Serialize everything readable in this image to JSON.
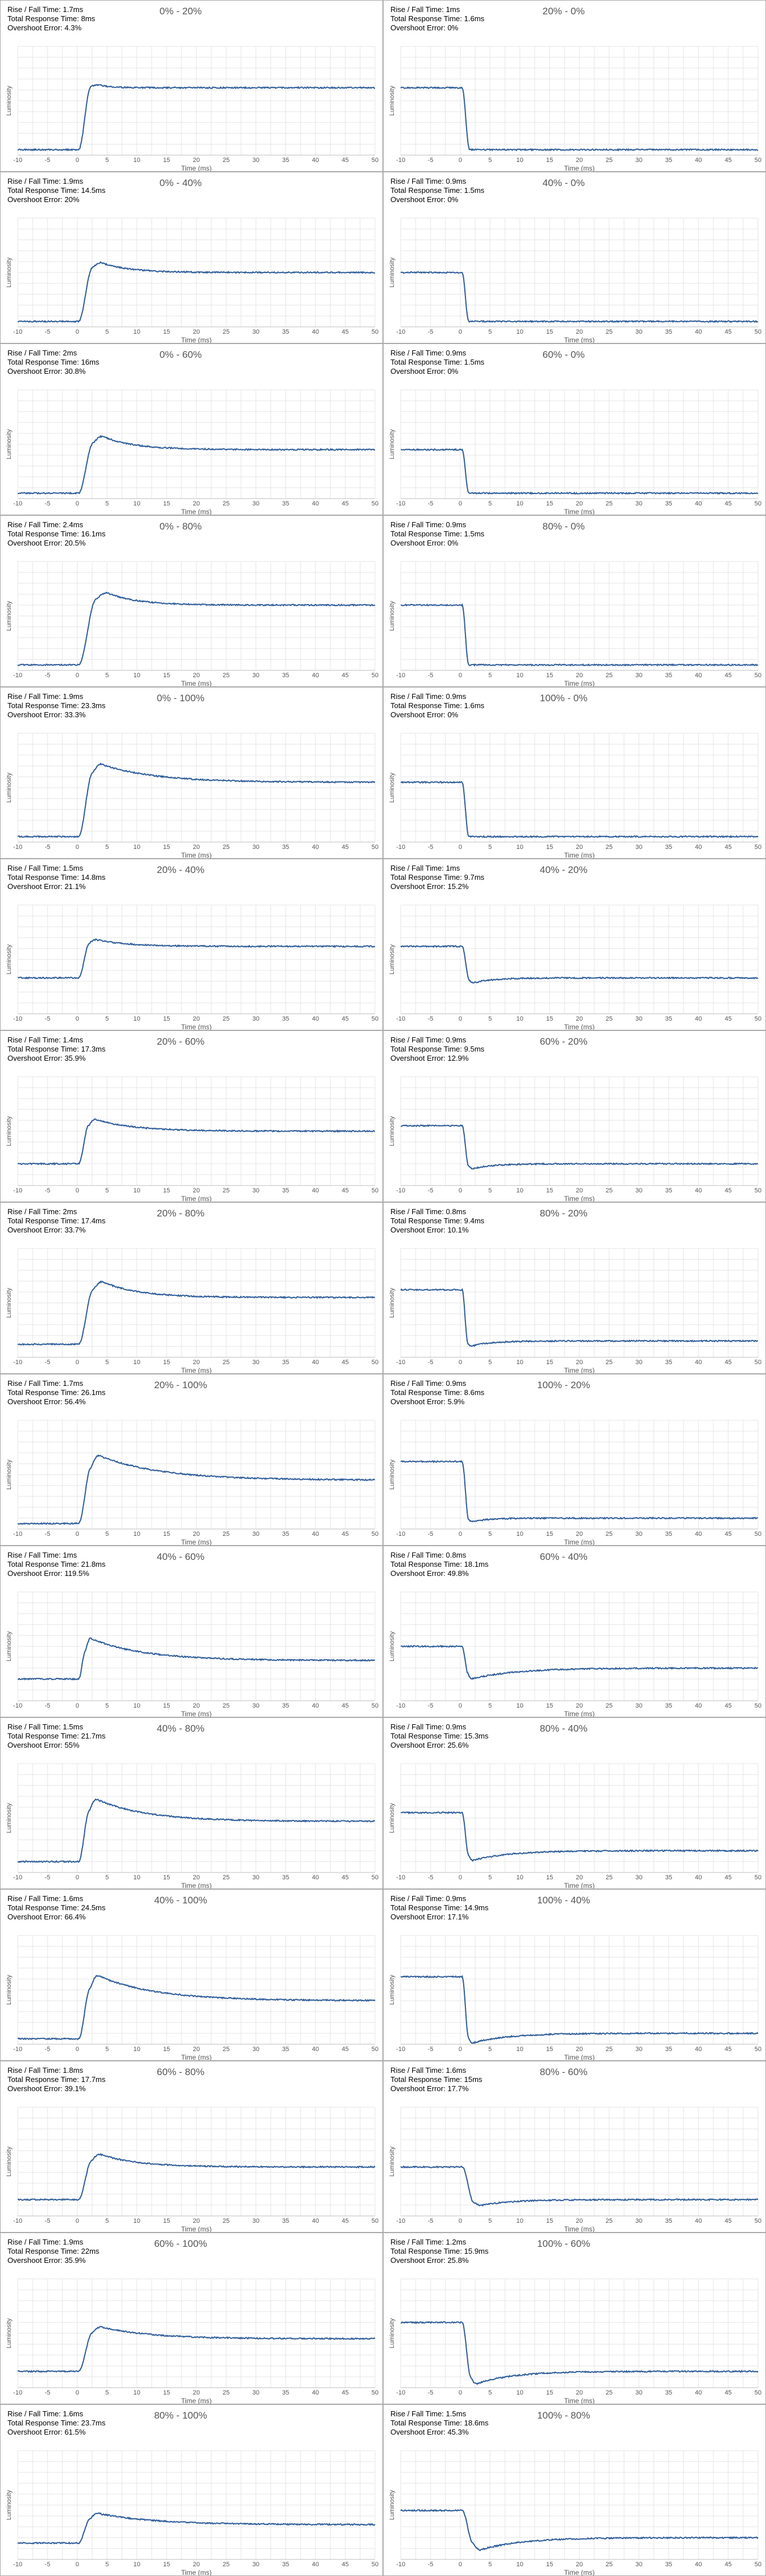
{
  "labels": {
    "rise_fall_prefix": "Rise / Fall Time: ",
    "total_prefix": "Total Response Time: ",
    "overshoot_prefix": "Overshoot Error: "
  },
  "chart_data": [
    {
      "type": "line",
      "title": "0% - 20%",
      "xlabel": "Time (ms)",
      "ylabel": "Luminosity",
      "xlim": [
        -10,
        50
      ],
      "xticks": [
        -10,
        -5,
        0,
        5,
        10,
        15,
        20,
        25,
        30,
        35,
        40,
        45,
        50
      ],
      "rise_fall": "1.7ms",
      "total_response": "8ms",
      "overshoot_error": "4.3%",
      "from_level": 0.05,
      "to_level": 0.62,
      "start_ms": 0.2,
      "transition_ms": 1.7,
      "settle_ms": 8,
      "overshoot": 0.043
    },
    {
      "type": "line",
      "title": "20% - 0%",
      "xlabel": "Time (ms)",
      "ylabel": "Luminosity",
      "xlim": [
        -10,
        50
      ],
      "xticks": [
        -10,
        -5,
        0,
        5,
        10,
        15,
        20,
        25,
        30,
        35,
        40,
        45,
        50
      ],
      "rise_fall": "1ms",
      "total_response": "1.6ms",
      "overshoot_error": "0%",
      "from_level": 0.62,
      "to_level": 0.05,
      "start_ms": 0.3,
      "transition_ms": 1,
      "settle_ms": 1.6,
      "overshoot": 0
    },
    {
      "type": "line",
      "title": "0% - 40%",
      "xlabel": "Time (ms)",
      "ylabel": "Luminosity",
      "xlim": [
        -10,
        50
      ],
      "xticks": [
        -10,
        -5,
        0,
        5,
        10,
        15,
        20,
        25,
        30,
        35,
        40,
        45,
        50
      ],
      "rise_fall": "1.9ms",
      "total_response": "14.5ms",
      "overshoot_error": "20%",
      "from_level": 0.05,
      "to_level": 0.5,
      "start_ms": 0.2,
      "transition_ms": 1.9,
      "settle_ms": 14.5,
      "overshoot": 0.2
    },
    {
      "type": "line",
      "title": "40% - 0%",
      "xlabel": "Time (ms)",
      "ylabel": "Luminosity",
      "xlim": [
        -10,
        50
      ],
      "xticks": [
        -10,
        -5,
        0,
        5,
        10,
        15,
        20,
        25,
        30,
        35,
        40,
        45,
        50
      ],
      "rise_fall": "0.9ms",
      "total_response": "1.5ms",
      "overshoot_error": "0%",
      "from_level": 0.5,
      "to_level": 0.05,
      "start_ms": 0.3,
      "transition_ms": 0.9,
      "settle_ms": 1.5,
      "overshoot": 0
    },
    {
      "type": "line",
      "title": "0% - 60%",
      "xlabel": "Time (ms)",
      "ylabel": "Luminosity",
      "xlim": [
        -10,
        50
      ],
      "xticks": [
        -10,
        -5,
        0,
        5,
        10,
        15,
        20,
        25,
        30,
        35,
        40,
        45,
        50
      ],
      "rise_fall": "2ms",
      "total_response": "16ms",
      "overshoot_error": "30.8%",
      "from_level": 0.05,
      "to_level": 0.45,
      "start_ms": 0.2,
      "transition_ms": 2,
      "settle_ms": 16,
      "overshoot": 0.308
    },
    {
      "type": "line",
      "title": "60% - 0%",
      "xlabel": "Time (ms)",
      "ylabel": "Luminosity",
      "xlim": [
        -10,
        50
      ],
      "xticks": [
        -10,
        -5,
        0,
        5,
        10,
        15,
        20,
        25,
        30,
        35,
        40,
        45,
        50
      ],
      "rise_fall": "0.9ms",
      "total_response": "1.5ms",
      "overshoot_error": "0%",
      "from_level": 0.45,
      "to_level": 0.05,
      "start_ms": 0.3,
      "transition_ms": 0.9,
      "settle_ms": 1.5,
      "overshoot": 0
    },
    {
      "type": "line",
      "title": "0% - 80%",
      "xlabel": "Time (ms)",
      "ylabel": "Luminosity",
      "xlim": [
        -10,
        50
      ],
      "xticks": [
        -10,
        -5,
        0,
        5,
        10,
        15,
        20,
        25,
        30,
        35,
        40,
        45,
        50
      ],
      "rise_fall": "2.4ms",
      "total_response": "16.1ms",
      "overshoot_error": "20.5%",
      "from_level": 0.05,
      "to_level": 0.6,
      "start_ms": 0.2,
      "transition_ms": 2.4,
      "settle_ms": 16.1,
      "overshoot": 0.205
    },
    {
      "type": "line",
      "title": "80% - 0%",
      "xlabel": "Time (ms)",
      "ylabel": "Luminosity",
      "xlim": [
        -10,
        50
      ],
      "xticks": [
        -10,
        -5,
        0,
        5,
        10,
        15,
        20,
        25,
        30,
        35,
        40,
        45,
        50
      ],
      "rise_fall": "0.9ms",
      "total_response": "1.5ms",
      "overshoot_error": "0%",
      "from_level": 0.6,
      "to_level": 0.05,
      "start_ms": 0.3,
      "transition_ms": 0.9,
      "settle_ms": 1.5,
      "overshoot": 0
    },
    {
      "type": "line",
      "title": "0% - 100%",
      "xlabel": "Time (ms)",
      "ylabel": "Luminosity",
      "xlim": [
        -10,
        50
      ],
      "xticks": [
        -10,
        -5,
        0,
        5,
        10,
        15,
        20,
        25,
        30,
        35,
        40,
        45,
        50
      ],
      "rise_fall": "1.9ms",
      "total_response": "23.3ms",
      "overshoot_error": "33.3%",
      "from_level": 0.05,
      "to_level": 0.55,
      "start_ms": 0.2,
      "transition_ms": 1.9,
      "settle_ms": 23.3,
      "overshoot": 0.333
    },
    {
      "type": "line",
      "title": "100% - 0%",
      "xlabel": "Time (ms)",
      "ylabel": "Luminosity",
      "xlim": [
        -10,
        50
      ],
      "xticks": [
        -10,
        -5,
        0,
        5,
        10,
        15,
        20,
        25,
        30,
        35,
        40,
        45,
        50
      ],
      "rise_fall": "0.9ms",
      "total_response": "1.6ms",
      "overshoot_error": "0%",
      "from_level": 0.55,
      "to_level": 0.05,
      "start_ms": 0.3,
      "transition_ms": 0.9,
      "settle_ms": 1.6,
      "overshoot": 0
    },
    {
      "type": "line",
      "title": "20% - 40%",
      "xlabel": "Time (ms)",
      "ylabel": "Luminosity",
      "xlim": [
        -10,
        50
      ],
      "xticks": [
        -10,
        -5,
        0,
        5,
        10,
        15,
        20,
        25,
        30,
        35,
        40,
        45,
        50
      ],
      "rise_fall": "1.5ms",
      "total_response": "14.8ms",
      "overshoot_error": "21.1%",
      "from_level": 0.33,
      "to_level": 0.62,
      "start_ms": 0.2,
      "transition_ms": 1.5,
      "settle_ms": 14.8,
      "overshoot": 0.211
    },
    {
      "type": "line",
      "title": "40% - 20%",
      "xlabel": "Time (ms)",
      "ylabel": "Luminosity",
      "xlim": [
        -10,
        50
      ],
      "xticks": [
        -10,
        -5,
        0,
        5,
        10,
        15,
        20,
        25,
        30,
        35,
        40,
        45,
        50
      ],
      "rise_fall": "1ms",
      "total_response": "9.7ms",
      "overshoot_error": "15.2%",
      "from_level": 0.62,
      "to_level": 0.33,
      "start_ms": 0.3,
      "transition_ms": 1,
      "settle_ms": 9.7,
      "overshoot": 0.152
    },
    {
      "type": "line",
      "title": "20% - 60%",
      "xlabel": "Time (ms)",
      "ylabel": "Luminosity",
      "xlim": [
        -10,
        50
      ],
      "xticks": [
        -10,
        -5,
        0,
        5,
        10,
        15,
        20,
        25,
        30,
        35,
        40,
        45,
        50
      ],
      "rise_fall": "1.4ms",
      "total_response": "17.3ms",
      "overshoot_error": "35.9%",
      "from_level": 0.2,
      "to_level": 0.5,
      "start_ms": 0.2,
      "transition_ms": 1.4,
      "settle_ms": 17.3,
      "overshoot": 0.359
    },
    {
      "type": "line",
      "title": "60% - 20%",
      "xlabel": "Time (ms)",
      "ylabel": "Luminosity",
      "xlim": [
        -10,
        50
      ],
      "xticks": [
        -10,
        -5,
        0,
        5,
        10,
        15,
        20,
        25,
        30,
        35,
        40,
        45,
        50
      ],
      "rise_fall": "0.9ms",
      "total_response": "9.5ms",
      "overshoot_error": "12.9%",
      "from_level": 0.55,
      "to_level": 0.2,
      "start_ms": 0.3,
      "transition_ms": 0.9,
      "settle_ms": 9.5,
      "overshoot": 0.129
    },
    {
      "type": "line",
      "title": "20% - 80%",
      "xlabel": "Time (ms)",
      "ylabel": "Luminosity",
      "xlim": [
        -10,
        50
      ],
      "xticks": [
        -10,
        -5,
        0,
        5,
        10,
        15,
        20,
        25,
        30,
        35,
        40,
        45,
        50
      ],
      "rise_fall": "2ms",
      "total_response": "17.4ms",
      "overshoot_error": "33.7%",
      "from_level": 0.12,
      "to_level": 0.55,
      "start_ms": 0.2,
      "transition_ms": 2,
      "settle_ms": 17.4,
      "overshoot": 0.337
    },
    {
      "type": "line",
      "title": "80% - 20%",
      "xlabel": "Time (ms)",
      "ylabel": "Luminosity",
      "xlim": [
        -10,
        50
      ],
      "xticks": [
        -10,
        -5,
        0,
        5,
        10,
        15,
        20,
        25,
        30,
        35,
        40,
        45,
        50
      ],
      "rise_fall": "0.8ms",
      "total_response": "9.4ms",
      "overshoot_error": "10.1%",
      "from_level": 0.62,
      "to_level": 0.15,
      "start_ms": 0.3,
      "transition_ms": 0.8,
      "settle_ms": 9.4,
      "overshoot": 0.101
    },
    {
      "type": "line",
      "title": "20% - 100%",
      "xlabel": "Time (ms)",
      "ylabel": "Luminosity",
      "xlim": [
        -10,
        50
      ],
      "xticks": [
        -10,
        -5,
        0,
        5,
        10,
        15,
        20,
        25,
        30,
        35,
        40,
        45,
        50
      ],
      "rise_fall": "1.7ms",
      "total_response": "26.1ms",
      "overshoot_error": "56.4%",
      "from_level": 0.05,
      "to_level": 0.45,
      "start_ms": 0.2,
      "transition_ms": 1.7,
      "settle_ms": 26.1,
      "overshoot": 0.564
    },
    {
      "type": "line",
      "title": "100% - 20%",
      "xlabel": "Time (ms)",
      "ylabel": "Luminosity",
      "xlim": [
        -10,
        50
      ],
      "xticks": [
        -10,
        -5,
        0,
        5,
        10,
        15,
        20,
        25,
        30,
        35,
        40,
        45,
        50
      ],
      "rise_fall": "0.9ms",
      "total_response": "8.6ms",
      "overshoot_error": "5.9%",
      "from_level": 0.62,
      "to_level": 0.1,
      "start_ms": 0.3,
      "transition_ms": 0.9,
      "settle_ms": 8.6,
      "overshoot": 0.059
    },
    {
      "type": "line",
      "title": "40% - 60%",
      "xlabel": "Time (ms)",
      "ylabel": "Luminosity",
      "xlim": [
        -10,
        50
      ],
      "xticks": [
        -10,
        -5,
        0,
        5,
        10,
        15,
        20,
        25,
        30,
        35,
        40,
        45,
        50
      ],
      "rise_fall": "1ms",
      "total_response": "21.8ms",
      "overshoot_error": "119.5%",
      "from_level": 0.2,
      "to_level": 0.37,
      "start_ms": 0.2,
      "transition_ms": 1,
      "settle_ms": 21.8,
      "overshoot": 1.195
    },
    {
      "type": "line",
      "title": "60% - 40%",
      "xlabel": "Time (ms)",
      "ylabel": "Luminosity",
      "xlim": [
        -10,
        50
      ],
      "xticks": [
        -10,
        -5,
        0,
        5,
        10,
        15,
        20,
        25,
        30,
        35,
        40,
        45,
        50
      ],
      "rise_fall": "0.8ms",
      "total_response": "18.1ms",
      "overshoot_error": "49.8%",
      "from_level": 0.5,
      "to_level": 0.3,
      "start_ms": 0.3,
      "transition_ms": 0.8,
      "settle_ms": 18.1,
      "overshoot": 0.498
    },
    {
      "type": "line",
      "title": "40% - 80%",
      "xlabel": "Time (ms)",
      "ylabel": "Luminosity",
      "xlim": [
        -10,
        50
      ],
      "xticks": [
        -10,
        -5,
        0,
        5,
        10,
        15,
        20,
        25,
        30,
        35,
        40,
        45,
        50
      ],
      "rise_fall": "1.5ms",
      "total_response": "21.7ms",
      "overshoot_error": "55%",
      "from_level": 0.1,
      "to_level": 0.47,
      "start_ms": 0.2,
      "transition_ms": 1.5,
      "settle_ms": 21.7,
      "overshoot": 0.55
    },
    {
      "type": "line",
      "title": "80% - 40%",
      "xlabel": "Time (ms)",
      "ylabel": "Luminosity",
      "xlim": [
        -10,
        50
      ],
      "xticks": [
        -10,
        -5,
        0,
        5,
        10,
        15,
        20,
        25,
        30,
        35,
        40,
        45,
        50
      ],
      "rise_fall": "0.9ms",
      "total_response": "15.3ms",
      "overshoot_error": "25.6%",
      "from_level": 0.55,
      "to_level": 0.2,
      "start_ms": 0.3,
      "transition_ms": 0.9,
      "settle_ms": 15.3,
      "overshoot": 0.256
    },
    {
      "type": "line",
      "title": "40% - 100%",
      "xlabel": "Time (ms)",
      "ylabel": "Luminosity",
      "xlim": [
        -10,
        50
      ],
      "xticks": [
        -10,
        -5,
        0,
        5,
        10,
        15,
        20,
        25,
        30,
        35,
        40,
        45,
        50
      ],
      "rise_fall": "1.6ms",
      "total_response": "24.5ms",
      "overshoot_error": "66.4%",
      "from_level": 0.05,
      "to_level": 0.4,
      "start_ms": 0.2,
      "transition_ms": 1.6,
      "settle_ms": 24.5,
      "overshoot": 0.664
    },
    {
      "type": "line",
      "title": "100% - 40%",
      "xlabel": "Time (ms)",
      "ylabel": "Luminosity",
      "xlim": [
        -10,
        50
      ],
      "xticks": [
        -10,
        -5,
        0,
        5,
        10,
        15,
        20,
        25,
        30,
        35,
        40,
        45,
        50
      ],
      "rise_fall": "0.9ms",
      "total_response": "14.9ms",
      "overshoot_error": "17.1%",
      "from_level": 0.62,
      "to_level": 0.1,
      "start_ms": 0.3,
      "transition_ms": 0.9,
      "settle_ms": 14.9,
      "overshoot": 0.171
    },
    {
      "type": "line",
      "title": "60% - 80%",
      "xlabel": "Time (ms)",
      "ylabel": "Luminosity",
      "xlim": [
        -10,
        50
      ],
      "xticks": [
        -10,
        -5,
        0,
        5,
        10,
        15,
        20,
        25,
        30,
        35,
        40,
        45,
        50
      ],
      "rise_fall": "1.8ms",
      "total_response": "17.7ms",
      "overshoot_error": "39.1%",
      "from_level": 0.15,
      "to_level": 0.45,
      "start_ms": 0.2,
      "transition_ms": 1.8,
      "settle_ms": 17.7,
      "overshoot": 0.391
    },
    {
      "type": "line",
      "title": "80% - 60%",
      "xlabel": "Time (ms)",
      "ylabel": "Luminosity",
      "xlim": [
        -10,
        50
      ],
      "xticks": [
        -10,
        -5,
        0,
        5,
        10,
        15,
        20,
        25,
        30,
        35,
        40,
        45,
        50
      ],
      "rise_fall": "1.6ms",
      "total_response": "15ms",
      "overshoot_error": "17.7%",
      "from_level": 0.45,
      "to_level": 0.15,
      "start_ms": 0.3,
      "transition_ms": 1.6,
      "settle_ms": 15,
      "overshoot": 0.177
    },
    {
      "type": "line",
      "title": "60% - 100%",
      "xlabel": "Time (ms)",
      "ylabel": "Luminosity",
      "xlim": [
        -10,
        50
      ],
      "xticks": [
        -10,
        -5,
        0,
        5,
        10,
        15,
        20,
        25,
        30,
        35,
        40,
        45,
        50
      ],
      "rise_fall": "1.9ms",
      "total_response": "22ms",
      "overshoot_error": "35.9%",
      "from_level": 0.15,
      "to_level": 0.45,
      "start_ms": 0.2,
      "transition_ms": 1.9,
      "settle_ms": 22,
      "overshoot": 0.359
    },
    {
      "type": "line",
      "title": "100% - 60%",
      "xlabel": "Time (ms)",
      "ylabel": "Luminosity",
      "xlim": [
        -10,
        50
      ],
      "xticks": [
        -10,
        -5,
        0,
        5,
        10,
        15,
        20,
        25,
        30,
        35,
        40,
        45,
        50
      ],
      "rise_fall": "1.2ms",
      "total_response": "15.9ms",
      "overshoot_error": "25.8%",
      "from_level": 0.6,
      "to_level": 0.15,
      "start_ms": 0.3,
      "transition_ms": 1.2,
      "settle_ms": 15.9,
      "overshoot": 0.258
    },
    {
      "type": "line",
      "title": "80% - 100%",
      "xlabel": "Time (ms)",
      "ylabel": "Luminosity",
      "xlim": [
        -10,
        50
      ],
      "xticks": [
        -10,
        -5,
        0,
        5,
        10,
        15,
        20,
        25,
        30,
        35,
        40,
        45,
        50
      ],
      "rise_fall": "1.6ms",
      "total_response": "23.7ms",
      "overshoot_error": "61.5%",
      "from_level": 0.15,
      "to_level": 0.32,
      "start_ms": 0.2,
      "transition_ms": 1.6,
      "settle_ms": 23.7,
      "overshoot": 0.615
    },
    {
      "type": "line",
      "title": "100% - 80%",
      "xlabel": "Time (ms)",
      "ylabel": "Luminosity",
      "xlim": [
        -10,
        50
      ],
      "xticks": [
        -10,
        -5,
        0,
        5,
        10,
        15,
        20,
        25,
        30,
        35,
        40,
        45,
        50
      ],
      "rise_fall": "1.5ms",
      "total_response": "18.6ms",
      "overshoot_error": "45.3%",
      "from_level": 0.45,
      "to_level": 0.2,
      "start_ms": 0.3,
      "transition_ms": 1.5,
      "settle_ms": 18.6,
      "overshoot": 0.453
    }
  ]
}
